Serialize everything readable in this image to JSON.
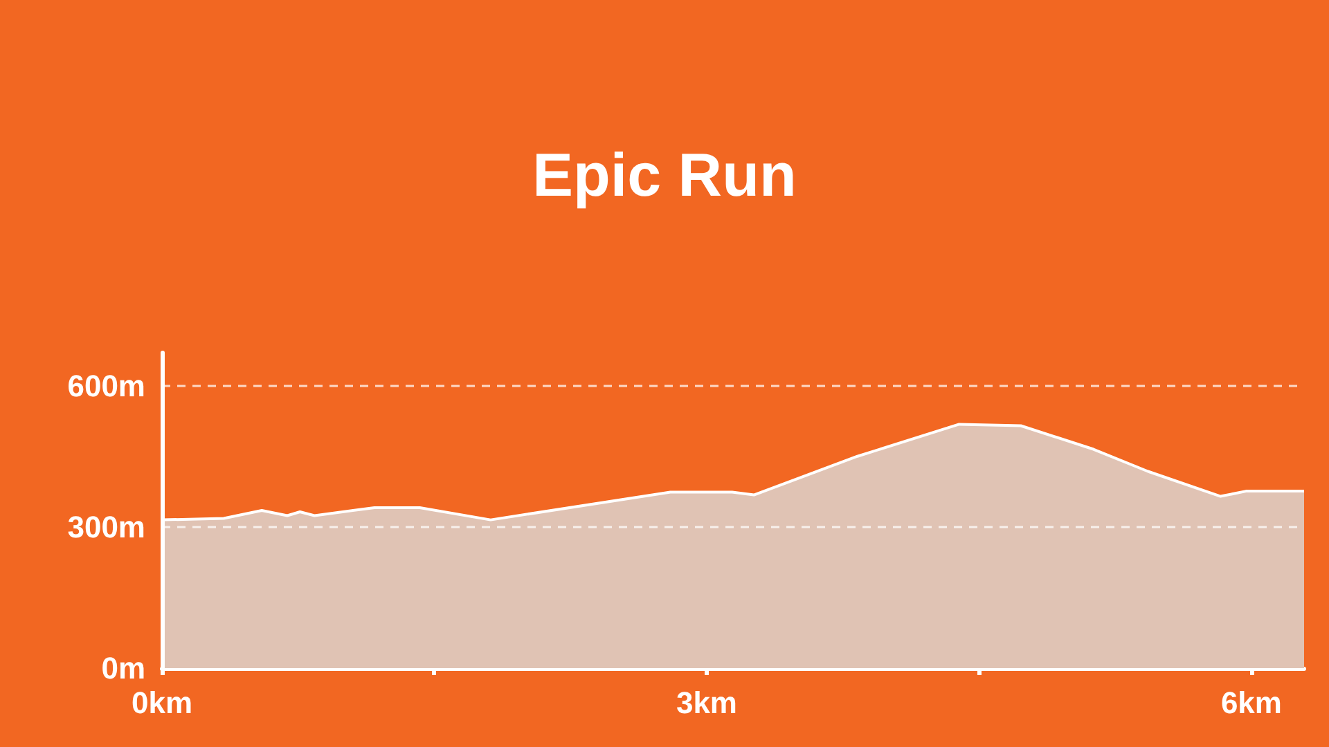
{
  "chart_data": {
    "type": "area",
    "title": "Epic Run",
    "x": [
      0,
      0.34,
      0.55,
      0.69,
      0.76,
      0.84,
      1.17,
      1.42,
      1.81,
      2.8,
      3.14,
      3.26,
      3.83,
      4.39,
      4.73,
      5.13,
      5.43,
      5.83,
      5.97,
      6.29
    ],
    "series": [
      {
        "color": "#e0c3b4",
        "values": [
          315,
          318,
          335,
          324,
          332,
          324,
          341,
          341,
          315,
          374,
          374,
          368,
          450,
          518,
          515,
          465,
          418,
          365,
          376,
          376
        ]
      }
    ],
    "xlim": [
      0,
      6.29
    ],
    "xticks": [
      {
        "value": 0,
        "label": "0km"
      },
      {
        "value": 1.5,
        "label": null
      },
      {
        "value": 3,
        "label": "3km"
      },
      {
        "value": 4.5,
        "label": null
      },
      {
        "value": 6,
        "label": "6km"
      }
    ],
    "ylim": [
      0,
      670
    ],
    "yticks": [
      {
        "value": 0,
        "label": "0m"
      },
      {
        "value": 300,
        "label": "300m"
      },
      {
        "value": 600,
        "label": "600m"
      }
    ],
    "grid": "y",
    "marker": "none"
  }
}
